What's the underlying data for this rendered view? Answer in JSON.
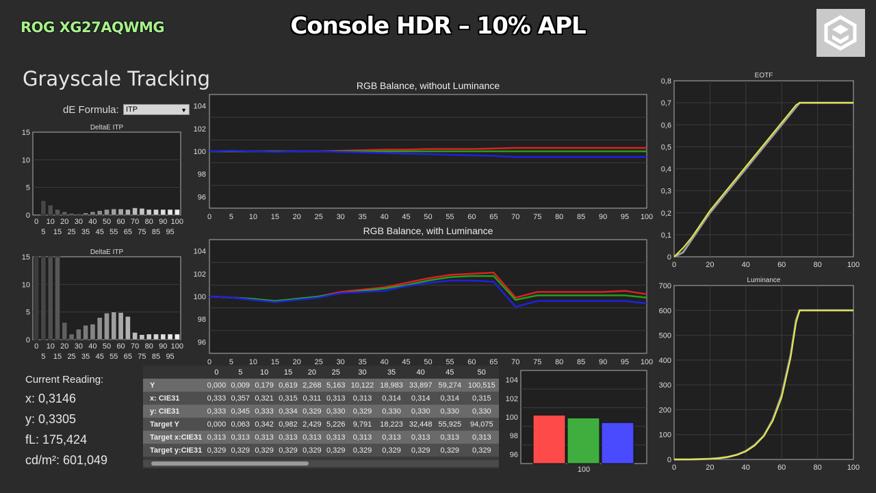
{
  "header": {
    "model": "ROG XG27AQWMG",
    "title": "Console HDR – 10% APL"
  },
  "section_title": "Grayscale Tracking",
  "de_formula": {
    "label": "dE Formula:",
    "value": "ITP"
  },
  "current_reading": {
    "label": "Current Reading:",
    "x": "x: 0,3146",
    "y": "y: 0,3305",
    "fl": "fL: 175,424",
    "cdm2": "cd/m²: 601,049"
  },
  "colors": {
    "red": "#e02020",
    "green": "#20a020",
    "blue": "#2020e0",
    "yellow": "#e4e84a",
    "gray": "#9a9a9a"
  },
  "table": {
    "columns": [
      "0",
      "5",
      "10",
      "15",
      "20",
      "25",
      "30",
      "35",
      "40",
      "45",
      "50"
    ],
    "rows": [
      {
        "label": "Y",
        "values": [
          "0,000",
          "0,009",
          "0,179",
          "0,619",
          "2,268",
          "5,163",
          "10,122",
          "18,983",
          "33,897",
          "59,274",
          "100,515"
        ]
      },
      {
        "label": "x: CIE31",
        "values": [
          "0,333",
          "0,357",
          "0,321",
          "0,315",
          "0,311",
          "0,313",
          "0,313",
          "0,314",
          "0,314",
          "0,314",
          "0,315"
        ]
      },
      {
        "label": "y: CIE31",
        "values": [
          "0,333",
          "0,345",
          "0,333",
          "0,334",
          "0,329",
          "0,330",
          "0,329",
          "0,330",
          "0,330",
          "0,330",
          "0,330"
        ]
      },
      {
        "label": "Target Y",
        "values": [
          "0,000",
          "0,063",
          "0,342",
          "0,982",
          "2,429",
          "5,226",
          "9,791",
          "18,223",
          "32,448",
          "55,925",
          "94,075"
        ]
      },
      {
        "label": "Target x:CIE31",
        "values": [
          "0,313",
          "0,313",
          "0,313",
          "0,313",
          "0,313",
          "0,313",
          "0,313",
          "0,313",
          "0,313",
          "0,313",
          "0,313"
        ]
      },
      {
        "label": "Target y:CIE31",
        "values": [
          "0,329",
          "0,329",
          "0,329",
          "0,329",
          "0,329",
          "0,329",
          "0,329",
          "0,329",
          "0,329",
          "0,329",
          "0,329"
        ]
      }
    ]
  },
  "chart_data": [
    {
      "id": "de1",
      "type": "bar",
      "title": "DeltaE ITP",
      "x": [
        0,
        5,
        10,
        15,
        20,
        25,
        30,
        35,
        40,
        45,
        50,
        55,
        60,
        65,
        70,
        75,
        80,
        85,
        90,
        95,
        100
      ],
      "values": [
        0,
        2.6,
        1.8,
        1.0,
        0.6,
        0.3,
        0.2,
        0.4,
        0.6,
        0.8,
        1.0,
        1.1,
        1.1,
        1.0,
        1.3,
        1.2,
        1.0,
        1.0,
        1.0,
        1.0,
        1.0
      ],
      "ylim": [
        0,
        15
      ],
      "yticks": [
        0,
        5,
        10,
        15
      ],
      "xticks_top": [
        "0",
        "10",
        "20",
        "30",
        "40",
        "50",
        "60",
        "70",
        "80",
        "90",
        "100"
      ],
      "xticks_bottom": [
        "5",
        "15",
        "25",
        "35",
        "45",
        "55",
        "65",
        "75",
        "85",
        "95"
      ]
    },
    {
      "id": "de2",
      "type": "bar",
      "title": "DeltaE ITP",
      "x": [
        0,
        5,
        10,
        15,
        20,
        25,
        30,
        35,
        40,
        45,
        50,
        55,
        60,
        65,
        70,
        75,
        80,
        85,
        90,
        95,
        100
      ],
      "values": [
        15,
        15,
        15,
        15,
        3.1,
        1.0,
        1.9,
        2.6,
        2.8,
        4.0,
        4.8,
        5.0,
        4.9,
        4.2,
        1.3,
        0.9,
        1.0,
        1.0,
        1.0,
        1.0,
        1.0
      ],
      "ylim": [
        0,
        15
      ],
      "yticks": [
        0,
        5,
        10,
        15
      ],
      "xticks_top": [
        "0",
        "10",
        "20",
        "30",
        "40",
        "50",
        "60",
        "70",
        "80",
        "90",
        "100"
      ],
      "xticks_bottom": [
        "5",
        "15",
        "25",
        "35",
        "45",
        "55",
        "65",
        "75",
        "85",
        "95"
      ]
    },
    {
      "id": "rgb1",
      "type": "line",
      "title": "RGB Balance, without Luminance",
      "x": [
        0,
        5,
        10,
        15,
        20,
        25,
        30,
        35,
        40,
        45,
        50,
        55,
        60,
        65,
        70,
        75,
        80,
        85,
        90,
        95,
        100
      ],
      "series": [
        {
          "color": "red",
          "values": [
            100,
            100,
            100,
            100,
            100,
            100,
            100.05,
            100.1,
            100.15,
            100.15,
            100.2,
            100.2,
            100.2,
            100.25,
            100.3,
            100.3,
            100.3,
            100.3,
            100.3,
            100.3,
            100.3
          ]
        },
        {
          "color": "green",
          "values": [
            100,
            100,
            100,
            100,
            100,
            100,
            100,
            100,
            100,
            100,
            100,
            100,
            100,
            100,
            100,
            100,
            100,
            100,
            100,
            100,
            100
          ]
        },
        {
          "color": "blue",
          "values": [
            100,
            100.05,
            100,
            99.95,
            100,
            100,
            99.95,
            99.9,
            99.85,
            99.8,
            99.75,
            99.7,
            99.65,
            99.6,
            99.5,
            99.5,
            99.5,
            99.5,
            99.5,
            99.5,
            99.5
          ]
        }
      ],
      "ylim": [
        95,
        105
      ],
      "yticks": [
        96,
        98,
        100,
        102,
        104
      ],
      "xticks": [
        0,
        5,
        10,
        15,
        20,
        25,
        30,
        35,
        40,
        45,
        50,
        55,
        60,
        65,
        70,
        75,
        80,
        85,
        90,
        95,
        100
      ]
    },
    {
      "id": "rgb2",
      "type": "line",
      "title": "RGB Balance, with Luminance",
      "x": [
        0,
        5,
        10,
        15,
        20,
        25,
        30,
        35,
        40,
        45,
        50,
        55,
        60,
        65,
        70,
        75,
        80,
        85,
        90,
        95,
        100
      ],
      "series": [
        {
          "color": "red",
          "values": [
            100,
            99.9,
            99.8,
            99.6,
            99.8,
            100,
            100.4,
            100.6,
            100.8,
            101.2,
            101.6,
            101.9,
            102.0,
            102.1,
            99.9,
            100.4,
            100.4,
            100.4,
            100.4,
            100.5,
            100.2
          ]
        },
        {
          "color": "green",
          "values": [
            100,
            99.9,
            99.8,
            99.6,
            99.8,
            100,
            100.3,
            100.5,
            100.7,
            101.0,
            101.4,
            101.7,
            101.8,
            101.8,
            99.7,
            100.1,
            100.1,
            100.1,
            100.1,
            100.1,
            99.9
          ]
        },
        {
          "color": "blue",
          "values": [
            100,
            99.9,
            99.7,
            99.5,
            99.7,
            99.9,
            100.3,
            100.4,
            100.5,
            100.9,
            101.2,
            101.4,
            101.4,
            101.3,
            99.1,
            99.6,
            99.6,
            99.6,
            99.6,
            99.6,
            99.4
          ]
        }
      ],
      "ylim": [
        95,
        105
      ],
      "yticks": [
        96,
        98,
        100,
        102,
        104
      ],
      "xticks": [
        0,
        5,
        10,
        15,
        20,
        25,
        30,
        35,
        40,
        45,
        50,
        55,
        60,
        65,
        70,
        75,
        80,
        85,
        90,
        95,
        100
      ]
    },
    {
      "id": "rgbbar",
      "type": "bar",
      "categories": [
        "100"
      ],
      "series": [
        {
          "color": "red",
          "values": [
            100.2
          ]
        },
        {
          "color": "green",
          "values": [
            99.9
          ]
        },
        {
          "color": "blue",
          "values": [
            99.4
          ]
        }
      ],
      "ylim": [
        95,
        105
      ],
      "yticks": [
        96,
        98,
        100,
        102,
        104
      ]
    },
    {
      "id": "eotf",
      "type": "line",
      "title": "EOTF",
      "x": [
        0,
        5,
        10,
        15,
        20,
        30,
        40,
        50,
        60,
        65,
        68,
        70,
        75,
        80,
        90,
        100
      ],
      "series": [
        {
          "color": "gray",
          "values": [
            0,
            0.02,
            0.08,
            0.14,
            0.2,
            0.3,
            0.4,
            0.5,
            0.6,
            0.65,
            0.68,
            0.7,
            0.7,
            0.7,
            0.7,
            0.7
          ]
        },
        {
          "color": "yellow",
          "values": [
            0,
            0.04,
            0.09,
            0.15,
            0.21,
            0.31,
            0.41,
            0.51,
            0.61,
            0.66,
            0.69,
            0.7,
            0.7,
            0.7,
            0.7,
            0.7
          ]
        }
      ],
      "ylim": [
        0,
        0.8
      ],
      "yticks": [
        "0",
        "0,1",
        "0,2",
        "0,3",
        "0,4",
        "0,5",
        "0,6",
        "0,7",
        "0,8"
      ],
      "xlim": [
        0,
        100
      ],
      "xticks": [
        0,
        20,
        40,
        60,
        80,
        100
      ]
    },
    {
      "id": "lum",
      "type": "line",
      "title": "Luminance",
      "x": [
        0,
        10,
        20,
        25,
        30,
        35,
        40,
        45,
        50,
        55,
        60,
        65,
        68,
        70,
        75,
        80,
        90,
        100
      ],
      "series": [
        {
          "color": "gray",
          "values": [
            0,
            0.2,
            2.3,
            5.2,
            10,
            19,
            34,
            59,
            95,
            160,
            260,
            420,
            560,
            600,
            600,
            600,
            600,
            600
          ]
        },
        {
          "color": "yellow",
          "values": [
            0,
            0.2,
            2.3,
            5.2,
            10,
            18,
            32,
            56,
            94,
            155,
            250,
            410,
            550,
            600,
            600,
            600,
            600,
            600
          ]
        }
      ],
      "ylim": [
        0,
        700
      ],
      "yticks": [
        0,
        100,
        200,
        300,
        400,
        500,
        600,
        700
      ],
      "xlim": [
        0,
        100
      ],
      "xticks": [
        0,
        20,
        40,
        60,
        80,
        100
      ]
    }
  ]
}
